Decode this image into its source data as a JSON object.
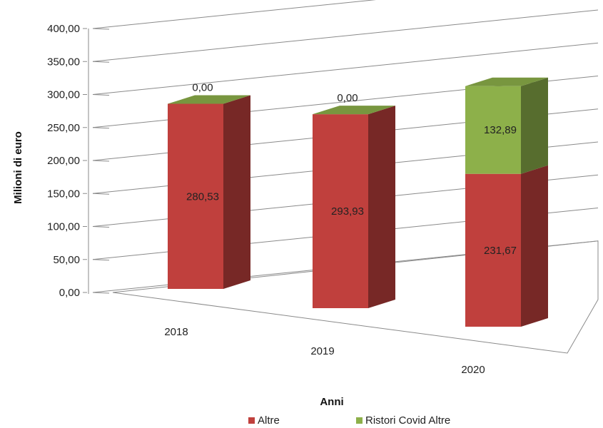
{
  "chart_data": {
    "type": "bar",
    "stacked": true,
    "three_d": true,
    "categories": [
      "2018",
      "2019",
      "2020"
    ],
    "series": [
      {
        "name": "Altre",
        "values": [
          280.53,
          293.93,
          231.67
        ],
        "labels": [
          "280,53",
          "293,93",
          "231,67"
        ],
        "color": "#C0403D"
      },
      {
        "name": "Ristori Covid Altre",
        "values": [
          0.0,
          0.0,
          132.89
        ],
        "labels": [
          "0,00",
          "0,00",
          "132,89"
        ],
        "color": "#8DB04A"
      }
    ],
    "ylim": [
      0,
      400
    ],
    "yticks": [
      0,
      50,
      100,
      150,
      200,
      250,
      300,
      350,
      400
    ],
    "ytick_labels": [
      "0,00",
      "50,00",
      "100,00",
      "150,00",
      "200,00",
      "250,00",
      "300,00",
      "350,00",
      "400,00"
    ],
    "xlabel": "Anni",
    "ylabel": "Milioni di euro",
    "grid": true,
    "legend_position": "bottom"
  }
}
